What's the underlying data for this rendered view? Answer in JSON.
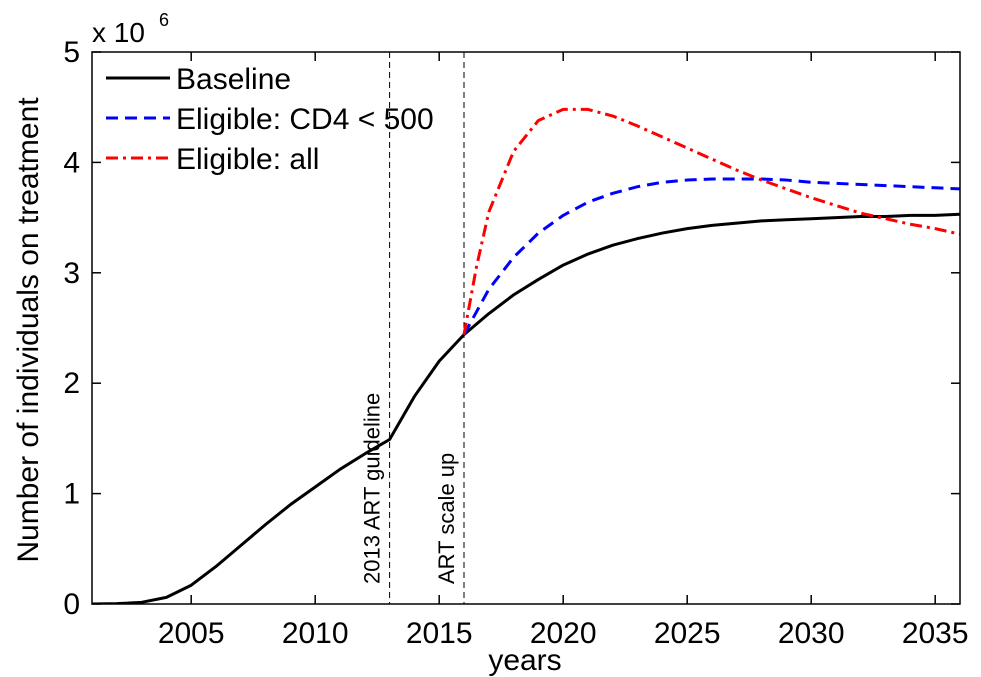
{
  "chart_data": {
    "type": "line",
    "xlabel": "years",
    "ylabel": "Number of individuals on treatment",
    "y_multiplier": "x 10",
    "y_multiplier_exp": "6",
    "xlim": [
      2001,
      2036
    ],
    "ylim": [
      0,
      5
    ],
    "x_ticks": [
      2005,
      2010,
      2015,
      2020,
      2025,
      2030,
      2035
    ],
    "y_ticks": [
      0,
      1,
      2,
      3,
      4,
      5
    ],
    "legend_position": "top-left",
    "grid": false,
    "vertical_lines": [
      {
        "x": 2013,
        "label": "2013 ART guideline"
      },
      {
        "x": 2016,
        "label": "ART scale up"
      }
    ],
    "series": [
      {
        "name": "Baseline",
        "color": "#000000",
        "dash": "solid",
        "x": [
          2001,
          2002,
          2003,
          2004,
          2005,
          2006,
          2007,
          2008,
          2009,
          2010,
          2011,
          2012,
          2013,
          2014,
          2015,
          2016,
          2017,
          2018,
          2019,
          2020,
          2021,
          2022,
          2023,
          2024,
          2025,
          2026,
          2027,
          2028,
          2029,
          2030,
          2031,
          2032,
          2033,
          2034,
          2035,
          2036
        ],
        "y": [
          0,
          0.003,
          0.015,
          0.06,
          0.17,
          0.34,
          0.53,
          0.72,
          0.9,
          1.06,
          1.22,
          1.36,
          1.49,
          1.88,
          2.2,
          2.44,
          2.63,
          2.8,
          2.94,
          3.07,
          3.17,
          3.25,
          3.31,
          3.36,
          3.4,
          3.43,
          3.45,
          3.47,
          3.48,
          3.49,
          3.5,
          3.51,
          3.51,
          3.52,
          3.52,
          3.53
        ]
      },
      {
        "name": "Eligible: CD4 < 500",
        "color": "#0000ff",
        "dash": "dashed",
        "x": [
          2016,
          2017,
          2018,
          2019,
          2020,
          2021,
          2022,
          2023,
          2024,
          2025,
          2026,
          2027,
          2028,
          2029,
          2030,
          2031,
          2032,
          2033,
          2034,
          2035,
          2036
        ],
        "y": [
          2.44,
          2.85,
          3.14,
          3.36,
          3.52,
          3.64,
          3.72,
          3.78,
          3.82,
          3.84,
          3.85,
          3.85,
          3.85,
          3.84,
          3.82,
          3.81,
          3.8,
          3.79,
          3.78,
          3.77,
          3.76
        ]
      },
      {
        "name": "Eligible: all",
        "color": "#ff0000",
        "dash": "dashdot",
        "x": [
          2016,
          2016.5,
          2017,
          2018,
          2019,
          2020,
          2021,
          2022,
          2023,
          2024,
          2025,
          2026,
          2027,
          2028,
          2029,
          2030,
          2031,
          2032,
          2033,
          2034,
          2035,
          2036
        ],
        "y": [
          2.44,
          3.05,
          3.55,
          4.1,
          4.38,
          4.48,
          4.48,
          4.42,
          4.33,
          4.23,
          4.13,
          4.03,
          3.93,
          3.84,
          3.76,
          3.68,
          3.61,
          3.54,
          3.49,
          3.44,
          3.4,
          3.35
        ]
      }
    ]
  }
}
